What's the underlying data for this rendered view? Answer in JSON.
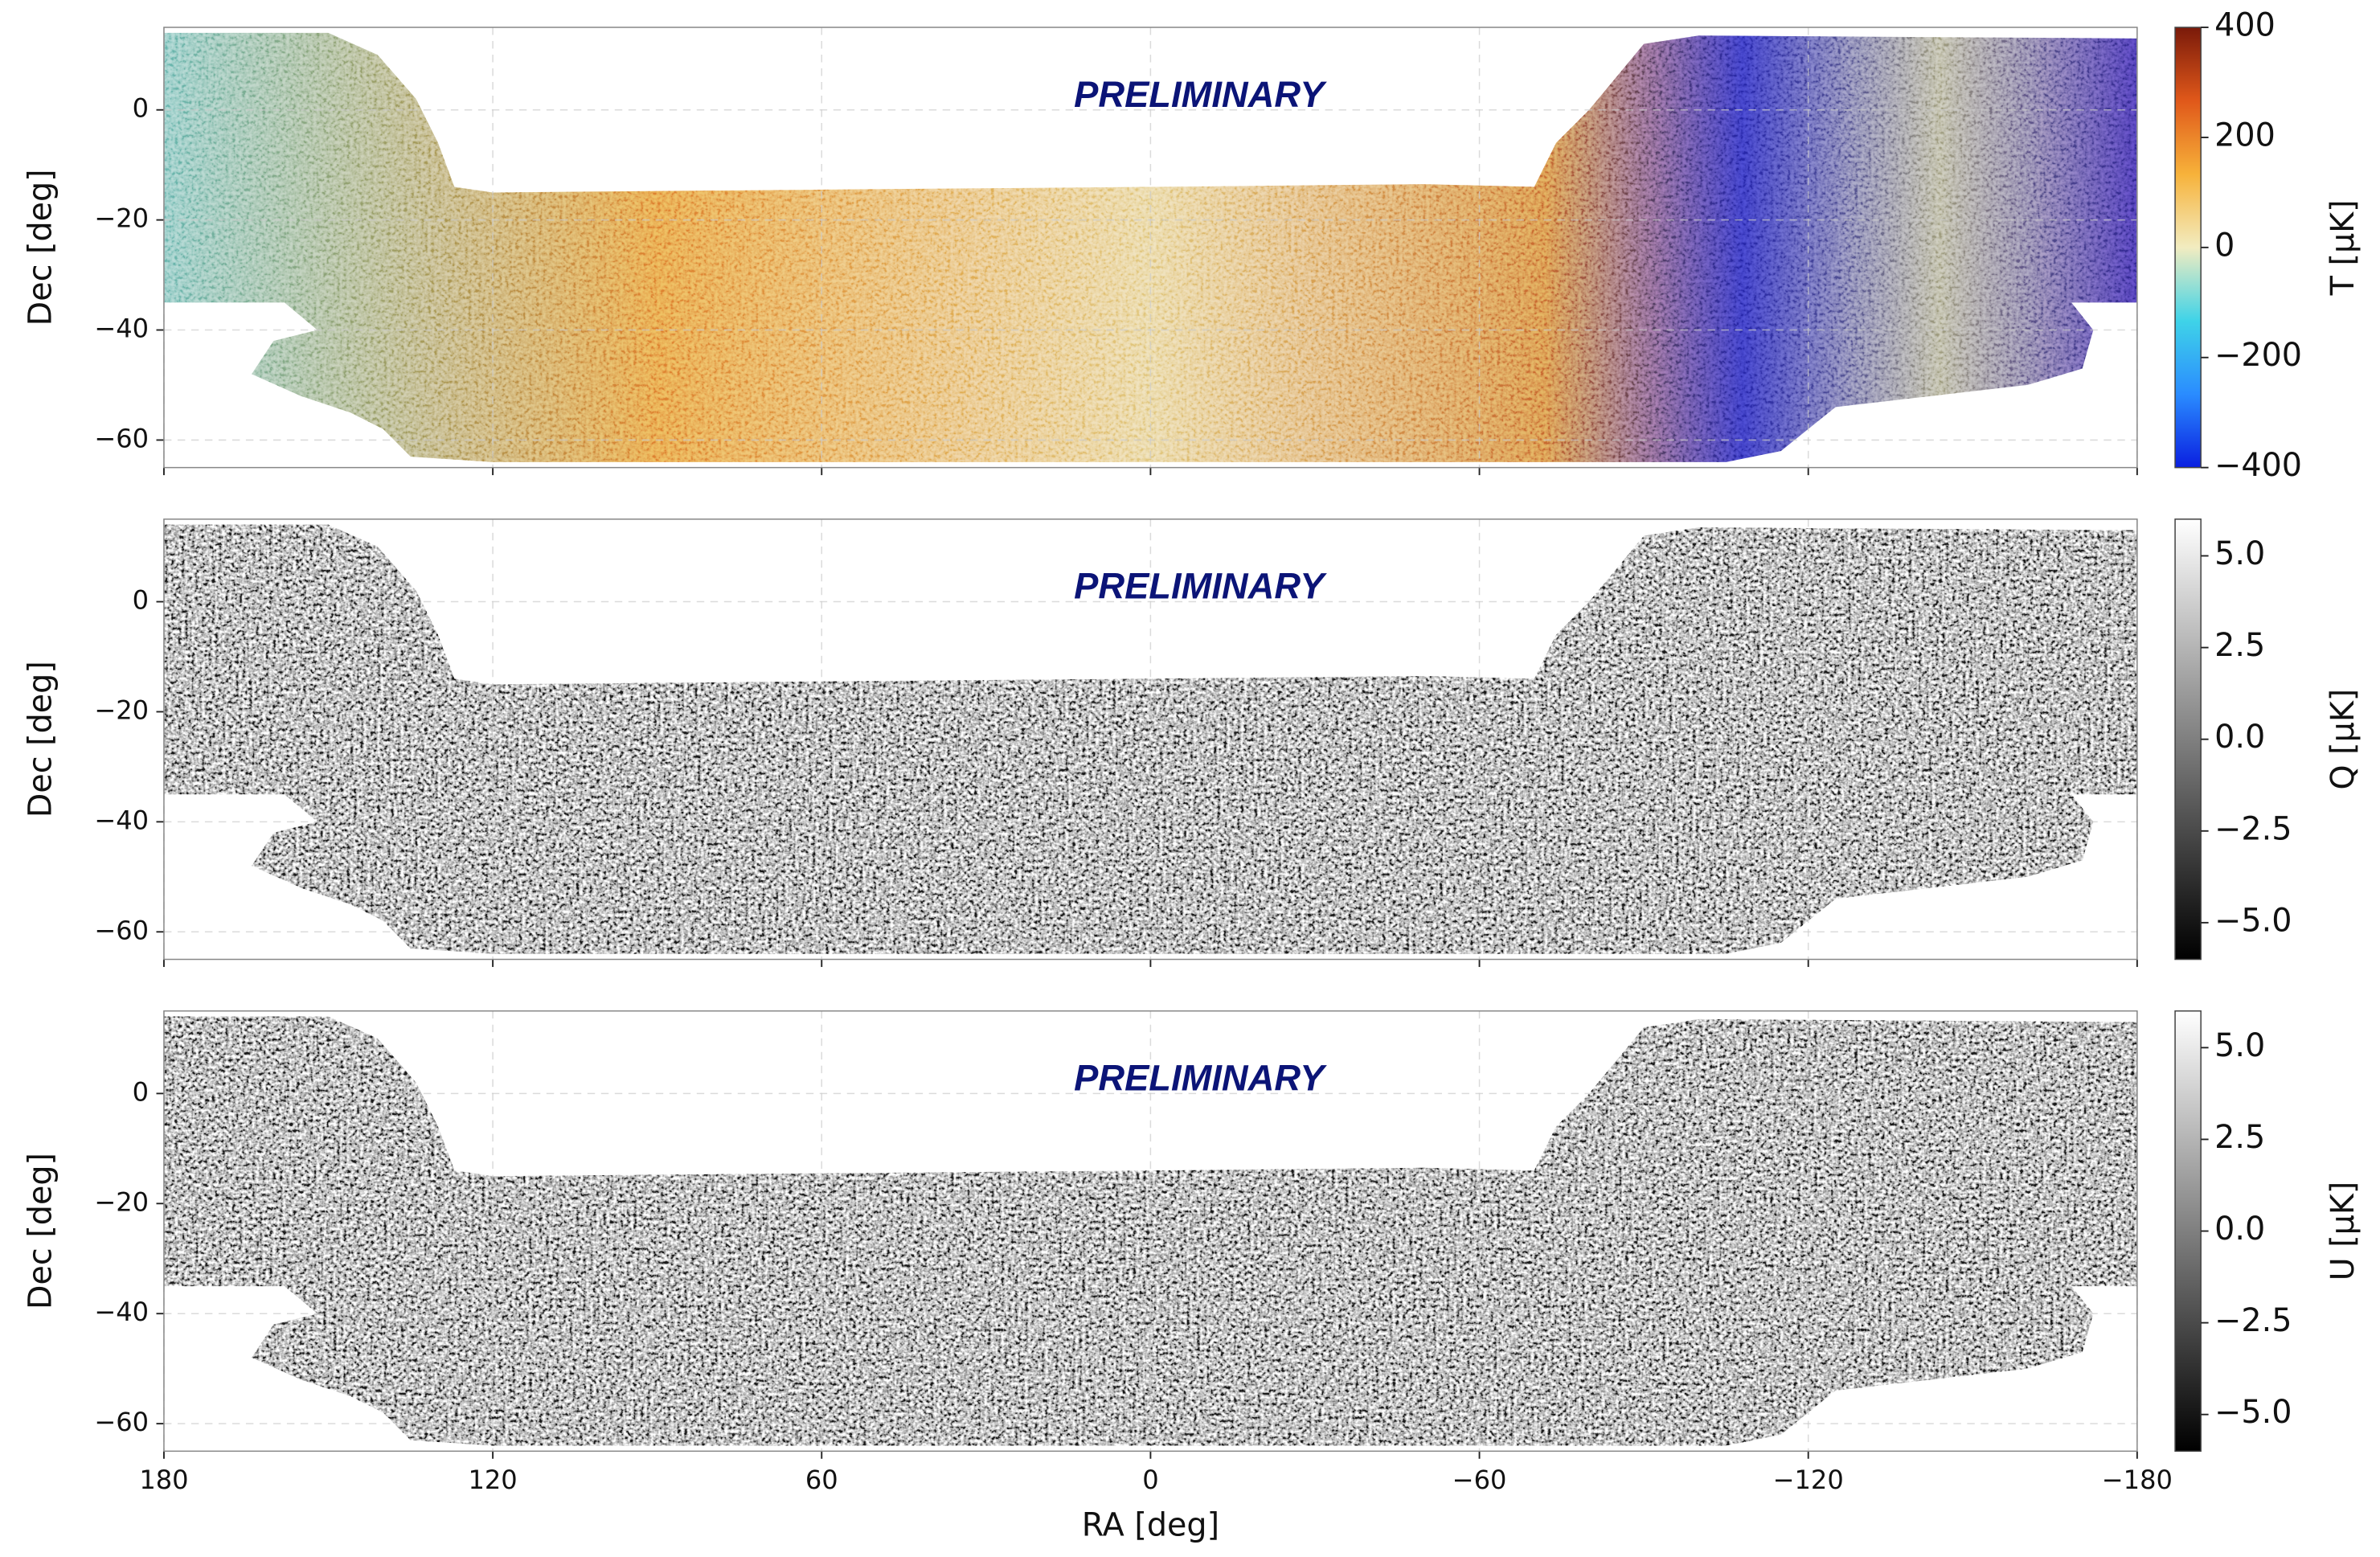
{
  "chart_data": [
    {
      "type": "map",
      "annotation": "PRELIMINARY",
      "ylabel": "Dec [deg]",
      "xlim": [
        180,
        -180
      ],
      "ylim": [
        -65,
        15
      ],
      "xticks": [
        180,
        120,
        60,
        0,
        {
          "value": -60,
          "label": "−60"
        },
        {
          "value": -120,
          "label": "−120"
        },
        {
          "value": -180,
          "label": "−180"
        }
      ],
      "yticks": [
        0,
        {
          "value": -20,
          "label": "−20"
        },
        {
          "value": -40,
          "label": "−40"
        },
        {
          "value": -60,
          "label": "−60"
        }
      ],
      "grid": true,
      "colorbar": {
        "label": "T [μK]",
        "lim": [
          -400,
          400
        ],
        "ticks": [
          {
            "value": -400,
            "label": "−400"
          },
          {
            "value": -200,
            "label": "−200"
          },
          0,
          200,
          400
        ],
        "colormap": [
          "#0a1fe0",
          "#2a8cff",
          "#3fd3e8",
          "#f2ecc0",
          "#f7b23a",
          "#e0581a",
          "#7a1a0a"
        ]
      }
    },
    {
      "type": "map",
      "annotation": "PRELIMINARY",
      "ylabel": "Dec [deg]",
      "xlim": [
        180,
        -180
      ],
      "ylim": [
        -65,
        15
      ],
      "xticks": [
        180,
        120,
        60,
        0,
        {
          "value": -60,
          "label": "−60"
        },
        {
          "value": -120,
          "label": "−120"
        },
        {
          "value": -180,
          "label": "−180"
        }
      ],
      "yticks": [
        0,
        {
          "value": -20,
          "label": "−20"
        },
        {
          "value": -40,
          "label": "−40"
        },
        {
          "value": -60,
          "label": "−60"
        }
      ],
      "grid": true,
      "colorbar": {
        "label": "Q [μK]",
        "lim": [
          -6,
          6
        ],
        "ticks": [
          {
            "value": -5,
            "label": "−5.0"
          },
          {
            "value": -2.5,
            "label": "−2.5"
          },
          {
            "value": 0,
            "label": "0.0"
          },
          {
            "value": 2.5,
            "label": "2.5"
          },
          {
            "value": 5,
            "label": "5.0"
          }
        ],
        "colormap": [
          "#000000",
          "#ffffff"
        ]
      }
    },
    {
      "type": "map",
      "annotation": "PRELIMINARY",
      "ylabel": "Dec [deg]",
      "xlabel": "RA [deg]",
      "xlim": [
        180,
        -180
      ],
      "ylim": [
        -65,
        15
      ],
      "xticks": [
        180,
        120,
        60,
        0,
        {
          "value": -60,
          "label": "−60"
        },
        {
          "value": -120,
          "label": "−120"
        },
        {
          "value": -180,
          "label": "−180"
        }
      ],
      "yticks": [
        0,
        {
          "value": -20,
          "label": "−20"
        },
        {
          "value": -40,
          "label": "−40"
        },
        {
          "value": -60,
          "label": "−60"
        }
      ],
      "grid": true,
      "colorbar": {
        "label": "U [μK]",
        "lim": [
          -6,
          6
        ],
        "ticks": [
          {
            "value": -5,
            "label": "−5.0"
          },
          {
            "value": -2.5,
            "label": "−2.5"
          },
          {
            "value": 0,
            "label": "0.0"
          },
          {
            "value": 2.5,
            "label": "2.5"
          },
          {
            "value": 5,
            "label": "5.0"
          }
        ],
        "colormap": [
          "#000000",
          "#ffffff"
        ]
      }
    }
  ]
}
